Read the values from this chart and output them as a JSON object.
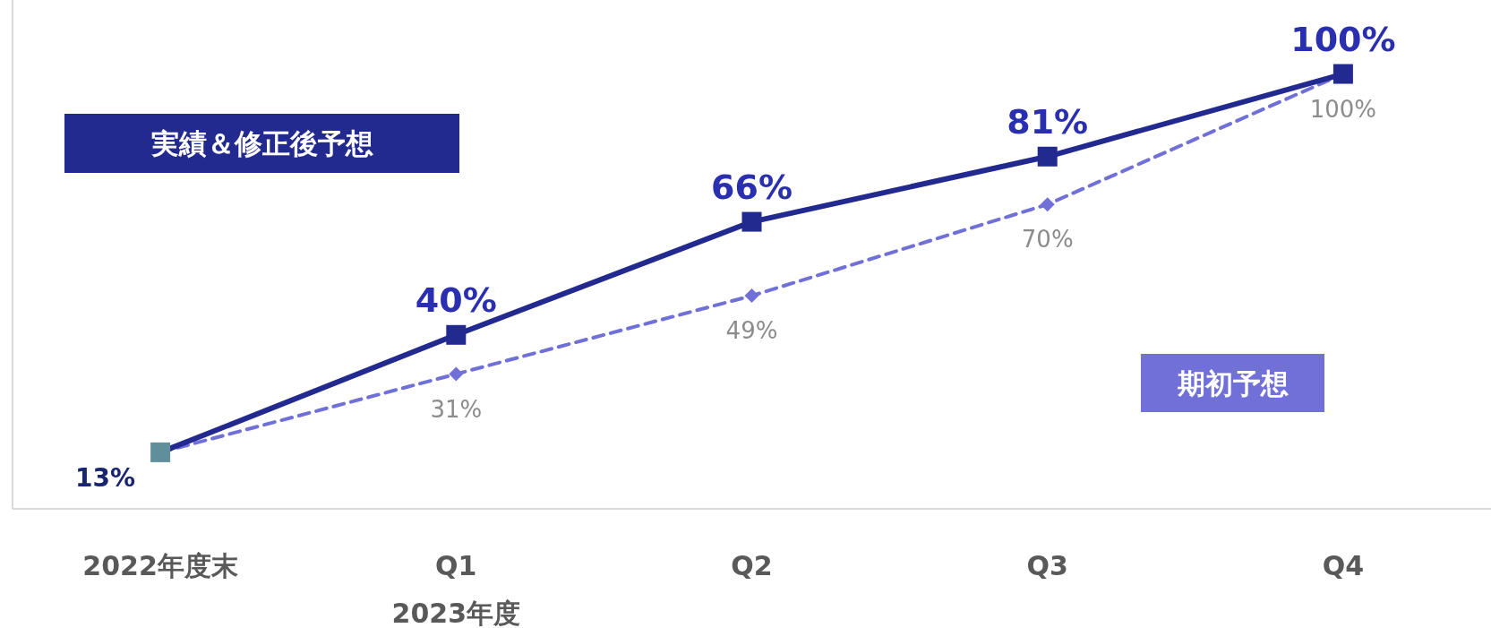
{
  "chart_data": {
    "type": "line",
    "categories": [
      "2022年度末",
      "Q1",
      "Q2",
      "Q3",
      "Q4"
    ],
    "xlabel": "2023年度",
    "series": [
      {
        "name": "実績＆修正後予想",
        "color": "#232a8f",
        "colors": [
          "#5f8f9b",
          "#232a8f",
          "#232a8f",
          "#232a8f",
          "#232a8f"
        ],
        "marker": "square",
        "line_style": "solid",
        "values": [
          13,
          40,
          66,
          81,
          100
        ],
        "value_labels": [
          "13%",
          "40%",
          "66%",
          "81%",
          "100%"
        ]
      },
      {
        "name": "期初予想",
        "color": "#7070d8",
        "marker": "diamond",
        "line_style": "dashed",
        "values": [
          13,
          31,
          49,
          70,
          100
        ],
        "value_labels": [
          null,
          "31%",
          "49%",
          "70%",
          "100%"
        ]
      }
    ]
  }
}
